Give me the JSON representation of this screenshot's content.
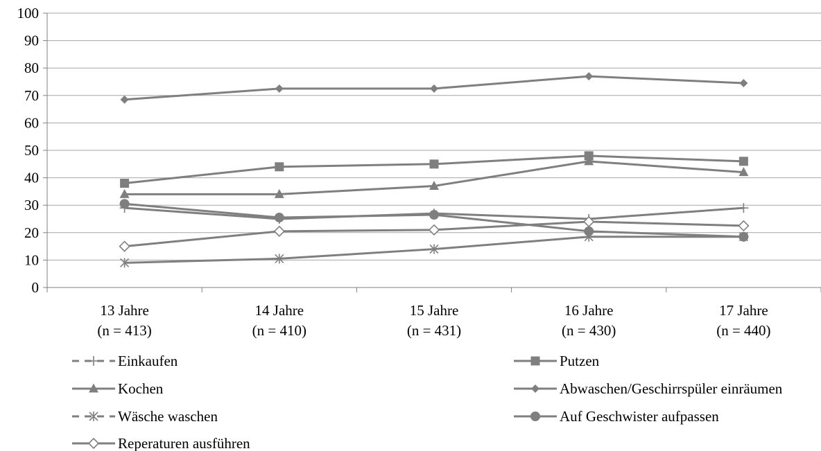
{
  "chart_data": {
    "type": "line",
    "categories": [
      "13 Jahre",
      "14 Jahre",
      "15 Jahre",
      "16 Jahre",
      "17 Jahre"
    ],
    "category_n": [
      "(n = 413)",
      "(n = 410)",
      "(n = 431)",
      "(n = 430)",
      "(n = 440)"
    ],
    "ylim": [
      0,
      100
    ],
    "yticks": [
      0,
      10,
      20,
      30,
      40,
      50,
      60,
      70,
      80,
      90,
      100
    ],
    "grid": "horizontal",
    "legend_position": "bottom",
    "line_color": "#7f7f7f",
    "series": [
      {
        "name": "Einkaufen",
        "marker": "plus",
        "values": [
          29,
          25,
          27,
          25,
          29
        ]
      },
      {
        "name": "Putzen",
        "marker": "square",
        "values": [
          38,
          44,
          45,
          48,
          46
        ]
      },
      {
        "name": "Kochen",
        "marker": "triangle",
        "values": [
          34,
          34,
          37,
          46,
          42
        ]
      },
      {
        "name": "Abwaschen/Geschirrspüler einräumen",
        "marker": "diamond",
        "values": [
          68.5,
          72.5,
          72.5,
          77,
          74.5
        ]
      },
      {
        "name": "Wäsche waschen",
        "marker": "star",
        "values": [
          9,
          10.5,
          14,
          18.5,
          18.5
        ]
      },
      {
        "name": "Auf Geschwister aufpassen",
        "marker": "circle",
        "values": [
          30.5,
          25.5,
          26.5,
          20.5,
          18.5
        ]
      },
      {
        "name": "Reperaturen ausführen",
        "marker": "open-diamond",
        "values": [
          15,
          20.5,
          21,
          24,
          22.5
        ]
      }
    ]
  }
}
